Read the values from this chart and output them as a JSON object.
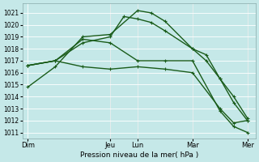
{
  "xlabel": "Pression niveau de la mer( hPa )",
  "bg_color": "#c5e8e8",
  "grid_color": "#b0d4d4",
  "line_color": "#1a5c1a",
  "ylim": [
    1010.5,
    1021.8
  ],
  "yticks": [
    1011,
    1012,
    1013,
    1014,
    1015,
    1016,
    1017,
    1018,
    1019,
    1020,
    1021
  ],
  "xtick_labels": [
    "Dim",
    "Jeu",
    "Lun",
    "Mar",
    "Mer"
  ],
  "xtick_positions": [
    0,
    3,
    4,
    6,
    8
  ],
  "line1_x": [
    0,
    1,
    2,
    3,
    4,
    4.5,
    5,
    6,
    6.5,
    7,
    7.5,
    8
  ],
  "line1_y": [
    1014.8,
    1016.5,
    1019.0,
    1019.2,
    1021.2,
    1021.0,
    1020.3,
    1018.0,
    1017.5,
    1015.5,
    1014.0,
    1012.2
  ],
  "line2_x": [
    0,
    1,
    2,
    3,
    3.5,
    4,
    4.5,
    5,
    6,
    6.5,
    7,
    7.5,
    8
  ],
  "line2_y": [
    1016.6,
    1017.0,
    1018.5,
    1019.0,
    1020.7,
    1020.5,
    1020.2,
    1019.5,
    1018.0,
    1017.0,
    1015.5,
    1013.5,
    1012.0
  ],
  "line3_x": [
    0,
    1,
    2,
    3,
    4,
    5,
    6,
    7,
    7.5,
    8
  ],
  "line3_y": [
    1016.6,
    1017.0,
    1018.8,
    1018.5,
    1017.0,
    1017.0,
    1017.0,
    1012.8,
    1011.5,
    1011.0
  ],
  "line4_x": [
    0,
    1,
    2,
    3,
    4,
    5,
    6,
    7,
    7.5,
    8
  ],
  "line4_y": [
    1016.6,
    1017.0,
    1016.5,
    1016.3,
    1016.5,
    1016.3,
    1016.0,
    1013.0,
    1011.8,
    1012.0
  ],
  "vline_positions": [
    3,
    4,
    6,
    8
  ],
  "vline_color": "#5a8a8a",
  "markersize": 3,
  "linewidth": 1.0
}
